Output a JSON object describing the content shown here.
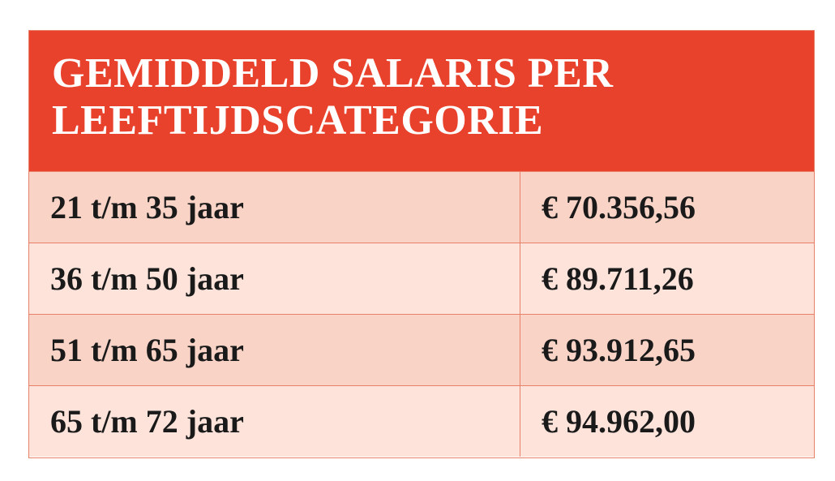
{
  "table": {
    "title_lines": [
      "GEMIDDELD SALARIS PER",
      "LEEFTIJDSCATEGORIE"
    ],
    "rows": [
      [
        "21 t/m 35 jaar",
        "€ 70.356,56"
      ],
      [
        "36 t/m 50 jaar",
        "€ 89.711,26"
      ],
      [
        "51 t/m 65 jaar",
        "€ 93.912,65"
      ],
      [
        "65 t/m 72 jaar",
        "€ 94.962,00"
      ]
    ]
  }
}
